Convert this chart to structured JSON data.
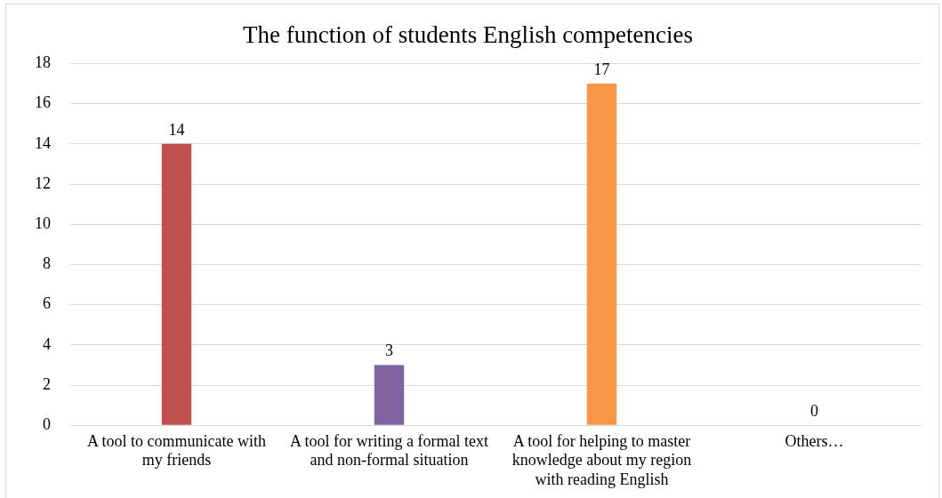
{
  "chart_data": {
    "type": "bar",
    "title": "The function of students English competencies",
    "categories": [
      "A tool to communicate with my friends",
      "A tool for writing a formal text and non-formal situation",
      "A tool for helping to master knowledge about my region with reading English",
      "Others…"
    ],
    "values": [
      14,
      3,
      17,
      0
    ],
    "colors": [
      "#c0504d",
      "#8064a2",
      "#f79646",
      "#4bacc6"
    ],
    "ylim": [
      0,
      18
    ],
    "yticks": [
      0,
      2,
      4,
      6,
      8,
      10,
      12,
      14,
      16,
      18
    ],
    "grid": "y",
    "legend": false,
    "data_labels": true
  }
}
